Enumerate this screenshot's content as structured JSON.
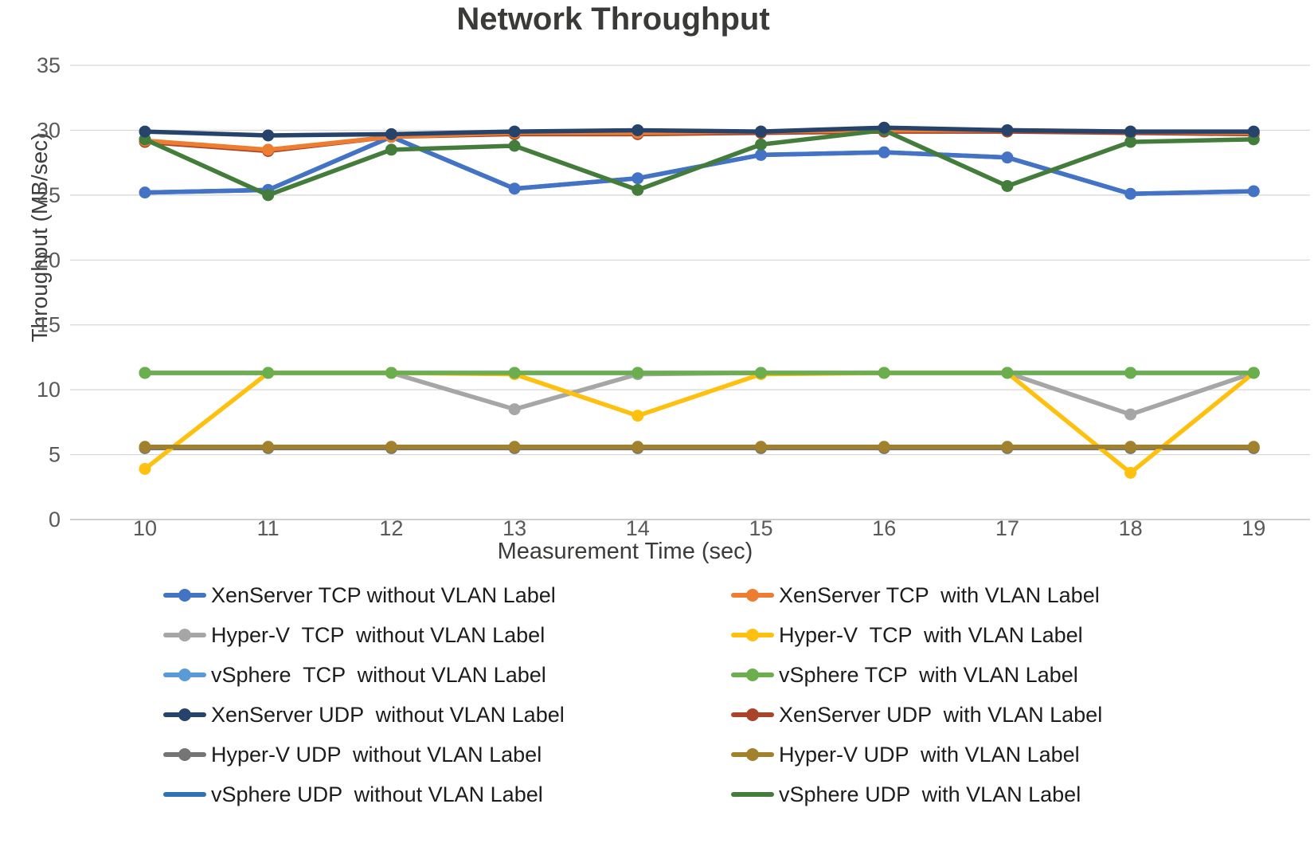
{
  "title": "Network Throughput",
  "x_axis_label": "Measurement Time (sec)",
  "y_axis_label": "Throughput (MB/sec)",
  "chart_data": {
    "type": "line",
    "title": "Network Throughput",
    "xlabel": "Measurement Time (sec)",
    "ylabel": "Throughput (MB/sec)",
    "x": [
      10,
      11,
      12,
      13,
      14,
      15,
      16,
      17,
      18,
      19
    ],
    "x_ticks": [
      10,
      11,
      12,
      13,
      14,
      15,
      16,
      17,
      18,
      19
    ],
    "y_ticks": [
      0,
      5,
      10,
      15,
      20,
      25,
      30,
      35
    ],
    "ylim": [
      0,
      35
    ],
    "grid": true,
    "gridline_color": "#d6d6d6",
    "axisline_color": "#bfbfbf",
    "tick_label_color": "#595959",
    "legend_position": "bottom-two-columns",
    "series": [
      {
        "name": "XenServer TCP without VLAN Label",
        "slug": "xenserver-tcp-without-vlan",
        "color": "#4472c4",
        "marker": true,
        "legend_marker": true,
        "column": "left",
        "draw_order": 8,
        "values": [
          25.2,
          25.4,
          29.5,
          25.5,
          26.3,
          28.1,
          28.3,
          27.9,
          25.1,
          25.3
        ]
      },
      {
        "name": "Hyper-V  TCP  without VLAN Label",
        "slug": "hyperv-tcp-without-vlan",
        "color": "#a6a6a6",
        "marker": true,
        "legend_marker": true,
        "column": "left",
        "draw_order": 3,
        "values": [
          11.3,
          11.3,
          11.3,
          8.5,
          11.2,
          11.3,
          11.3,
          11.3,
          8.1,
          11.3
        ]
      },
      {
        "name": "vSphere  TCP  without VLAN Label",
        "slug": "vsphere-tcp-without-vlan",
        "color": "#5b9bd5",
        "marker": true,
        "legend_marker": true,
        "column": "left",
        "draw_order": 1,
        "values": [
          11.3,
          11.3,
          11.3,
          11.3,
          11.3,
          11.3,
          11.3,
          11.3,
          11.3,
          11.3
        ]
      },
      {
        "name": "XenServer UDP  without VLAN Label",
        "slug": "xenserver-udp-without-vlan",
        "color": "#26436b",
        "marker": true,
        "legend_marker": true,
        "column": "left",
        "draw_order": 12,
        "values": [
          29.9,
          29.6,
          29.7,
          29.9,
          30.0,
          29.9,
          30.2,
          30.0,
          29.9,
          29.9
        ]
      },
      {
        "name": "Hyper-V UDP  without VLAN Label",
        "slug": "hyperv-udp-without-vlan",
        "color": "#757575",
        "marker": true,
        "legend_marker": true,
        "column": "left",
        "draw_order": 2,
        "values": [
          5.5,
          5.5,
          5.5,
          5.5,
          5.5,
          5.5,
          5.5,
          5.5,
          5.5,
          5.5
        ]
      },
      {
        "name": "vSphere UDP  without VLAN Label",
        "slug": "vsphere-udp-without-vlan",
        "color": "#2e74b5",
        "marker": false,
        "legend_marker": false,
        "column": "left",
        "draw_order": 7,
        "values": [
          25.2,
          25.4,
          29.5,
          25.5,
          26.3,
          28.1,
          28.3,
          27.9,
          25.1,
          25.3
        ]
      },
      {
        "name": "XenServer TCP  with VLAN Label",
        "slug": "xenserver-tcp-with-vlan",
        "color": "#ed7d31",
        "marker": true,
        "legend_marker": true,
        "column": "right",
        "draw_order": 10,
        "values": [
          29.2,
          28.5,
          29.5,
          29.8,
          29.8,
          29.9,
          30.0,
          30.0,
          29.9,
          29.8
        ]
      },
      {
        "name": "Hyper-V  TCP  with VLAN Label",
        "slug": "hyperv-tcp-with-vlan",
        "color": "#ffc010",
        "marker": true,
        "legend_marker": true,
        "column": "right",
        "draw_order": 4,
        "values": [
          3.9,
          11.3,
          11.3,
          11.2,
          8.0,
          11.2,
          11.3,
          11.3,
          3.6,
          11.3
        ]
      },
      {
        "name": "vSphere TCP  with VLAN Label",
        "slug": "vsphere-tcp-with-vlan",
        "color": "#6aae4e",
        "marker": true,
        "legend_marker": true,
        "column": "right",
        "draw_order": 6,
        "values": [
          11.3,
          11.3,
          11.3,
          11.3,
          11.3,
          11.3,
          11.3,
          11.3,
          11.3,
          11.3
        ]
      },
      {
        "name": "XenServer UDP  with VLAN Label",
        "slug": "xenserver-udp-with-vlan",
        "color": "#a9432a",
        "marker": true,
        "legend_marker": true,
        "column": "right",
        "draw_order": 9,
        "values": [
          29.1,
          28.4,
          29.5,
          29.7,
          29.7,
          29.8,
          29.9,
          29.9,
          29.8,
          29.7
        ]
      },
      {
        "name": "Hyper-V UDP  with VLAN Label",
        "slug": "hyperv-udp-with-vlan",
        "color": "#a1812c",
        "marker": true,
        "legend_marker": true,
        "column": "right",
        "draw_order": 5,
        "values": [
          5.6,
          5.6,
          5.6,
          5.6,
          5.6,
          5.6,
          5.6,
          5.6,
          5.6,
          5.6
        ]
      },
      {
        "name": "vSphere UDP  with VLAN Label",
        "slug": "vsphere-udp-with-vlan",
        "color": "#447c3c",
        "marker": true,
        "legend_marker": false,
        "column": "right",
        "draw_order": 11,
        "values": [
          29.3,
          25.0,
          28.5,
          28.8,
          25.4,
          28.9,
          30.0,
          25.7,
          29.1,
          29.3
        ]
      }
    ]
  }
}
